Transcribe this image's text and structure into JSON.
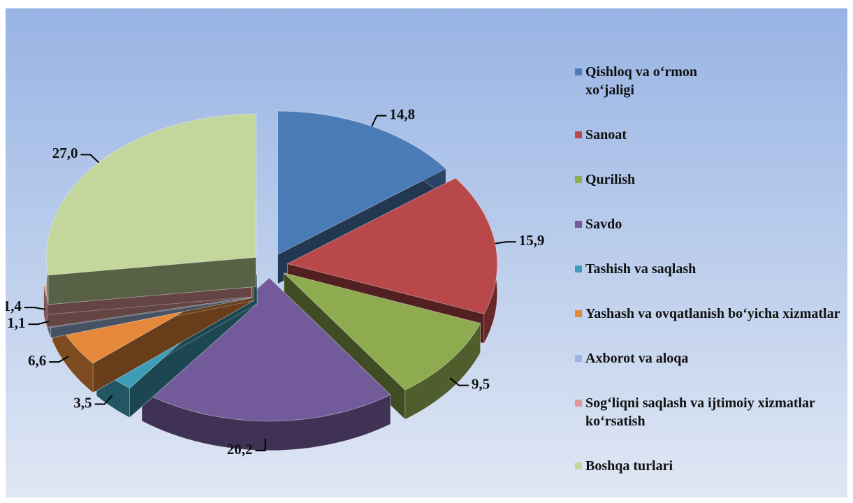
{
  "chart_data": {
    "type": "pie",
    "categories": [
      "Qishloq va o‘rmon xo‘jaligi",
      "Sanoat",
      "Qurilish",
      "Savdo",
      "Tashish va saqlash",
      "Yashash va ovqatlanish bo‘yicha xizmatlar",
      "Axborot va aloqa",
      "Sog‘liqni saqlash va ijtimoiy xizmatlar ko‘rsatish",
      "Boshqa turlari"
    ],
    "values": [
      14.8,
      15.9,
      9.5,
      20.2,
      3.5,
      6.6,
      1.1,
      1.4,
      27.0
    ],
    "value_labels": [
      "14,8",
      "15,9",
      "9,5",
      "20,2",
      "3,5",
      "6,6",
      "1,1",
      "1,4",
      "27,0"
    ],
    "colors": [
      "#4a7bb7",
      "#b9484a",
      "#8fab50",
      "#735b9b",
      "#3e9db6",
      "#e5883a",
      "#9cb4dd",
      "#df9998",
      "#c3d69b"
    ],
    "legend": "right"
  }
}
